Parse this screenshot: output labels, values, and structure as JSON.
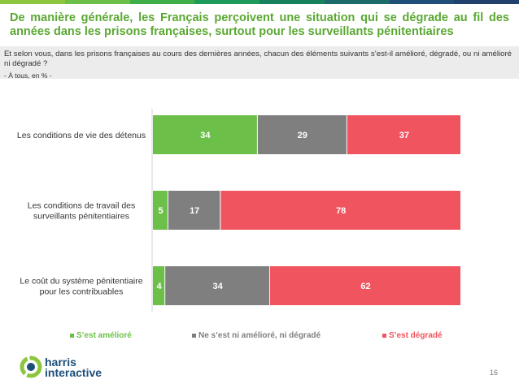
{
  "title": "De manière générale, les Français perçoivent une situation qui se dégrade au fil des années dans les prisons françaises, surtout pour les surveillants pénitentiaires",
  "question": "Et selon vous, dans les prisons françaises au cours des dernières années, chacun des éléments suivants s’est-il amélioré, dégradé, ou ni amélioré ni dégradé ?",
  "base": "- À tous, en % -",
  "colors": {
    "improved": "#6cc04a",
    "neutral": "#7f7f7f",
    "degraded": "#f0545e",
    "title": "#5aa832"
  },
  "chart_data": {
    "type": "bar",
    "orientation": "horizontal",
    "stacked": true,
    "categories": [
      [
        "Les conditions de vie des détenus"
      ],
      [
        "Les conditions de travail des",
        "surveillants pénitentiaires"
      ],
      [
        "Le coût du système pénitentiaire",
        "pour les contribuables"
      ]
    ],
    "series": [
      {
        "name": "S’est amélioré",
        "values": [
          34,
          5,
          4
        ]
      },
      {
        "name": "Ne s’est ni amélioré, ni dégradé",
        "values": [
          29,
          17,
          34
        ]
      },
      {
        "name": "S’est dégradé",
        "values": [
          37,
          78,
          62
        ]
      }
    ],
    "xlim": [
      0,
      100
    ],
    "legend_position": "bottom"
  },
  "logo": {
    "line1": "harris",
    "line2": "interactive"
  },
  "page_number": "16"
}
